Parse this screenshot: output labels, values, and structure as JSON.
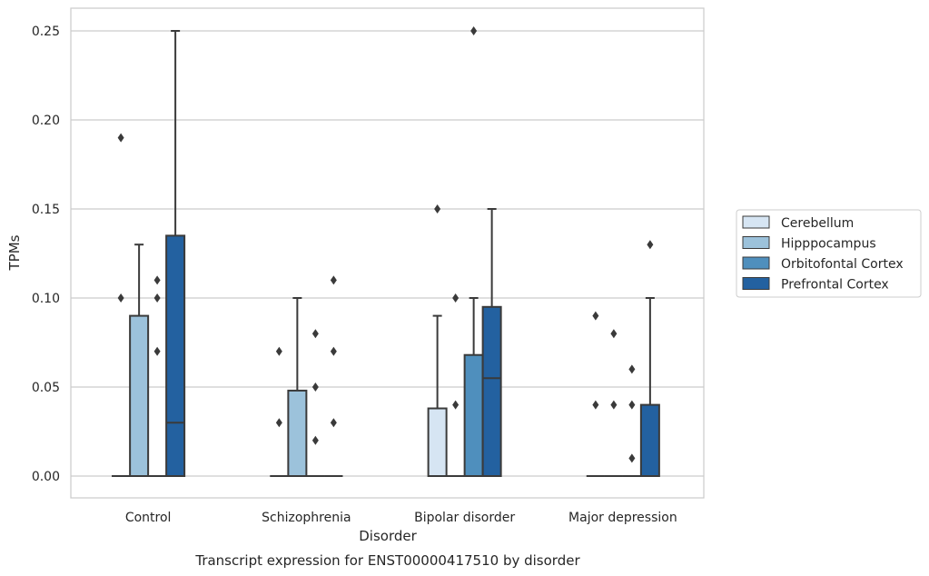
{
  "colors": {
    "Cerebellum": "#d6e5f3",
    "Hipppocampus": "#9cc2db",
    "Orbitofontal Cortex": "#4f8fbd",
    "Prefrontal Cortex": "#2361a0",
    "edge": "#3a3a3a",
    "grid": "#cccccc",
    "frame": "#cccccc"
  },
  "chart_data": {
    "type": "box",
    "caption": "Transcript expression for ENST00000417510 by disorder",
    "xlabel": "Disorder",
    "ylabel": "TPMs",
    "ylim": [
      -0.012,
      0.263
    ],
    "yticks": [
      0.0,
      0.05,
      0.1,
      0.15,
      0.2,
      0.25
    ],
    "ytick_labels": [
      "0.00",
      "0.05",
      "0.10",
      "0.15",
      "0.20",
      "0.25"
    ],
    "grid": true,
    "legend_position": "right",
    "categories": [
      "Control",
      "Schizophrenia",
      "Bipolar disorder",
      "Major depression"
    ],
    "series": [
      {
        "name": "Cerebellum",
        "boxes": [
          {
            "q1": 0,
            "median": 0,
            "q3": 0,
            "whislo": 0,
            "whishi": 0,
            "fliers": [
              0.1,
              0.19
            ]
          },
          {
            "q1": 0,
            "median": 0,
            "q3": 0,
            "whislo": 0,
            "whishi": 0,
            "fliers": [
              0.03,
              0.07
            ]
          },
          {
            "q1": 0,
            "median": 0,
            "q3": 0.038,
            "whislo": 0,
            "whishi": 0.09,
            "fliers": [
              0.15
            ]
          },
          {
            "q1": 0,
            "median": 0,
            "q3": 0,
            "whislo": 0,
            "whishi": 0,
            "fliers": [
              0.04,
              0.09
            ]
          }
        ]
      },
      {
        "name": "Hipppocampus",
        "boxes": [
          {
            "q1": 0,
            "median": 0,
            "q3": 0.09,
            "whislo": 0,
            "whishi": 0.13,
            "fliers": []
          },
          {
            "q1": 0,
            "median": 0,
            "q3": 0.048,
            "whislo": 0,
            "whishi": 0.1,
            "fliers": []
          },
          {
            "q1": 0,
            "median": 0,
            "q3": 0,
            "whislo": 0,
            "whishi": 0,
            "fliers": [
              0.04,
              0.1
            ]
          },
          {
            "q1": 0,
            "median": 0,
            "q3": 0,
            "whislo": 0,
            "whishi": 0,
            "fliers": [
              0.04,
              0.08
            ]
          }
        ]
      },
      {
        "name": "Orbitofontal Cortex",
        "boxes": [
          {
            "q1": 0,
            "median": 0,
            "q3": 0,
            "whislo": 0,
            "whishi": 0,
            "fliers": [
              0.07,
              0.1,
              0.11
            ]
          },
          {
            "q1": 0,
            "median": 0,
            "q3": 0,
            "whislo": 0,
            "whishi": 0,
            "fliers": [
              0.02,
              0.05,
              0.08
            ]
          },
          {
            "q1": 0,
            "median": 0,
            "q3": 0.068,
            "whislo": 0,
            "whishi": 0.1,
            "fliers": [
              0.25
            ]
          },
          {
            "q1": 0,
            "median": 0,
            "q3": 0,
            "whislo": 0,
            "whishi": 0,
            "fliers": [
              0.01,
              0.04,
              0.06
            ]
          }
        ]
      },
      {
        "name": "Prefrontal Cortex",
        "boxes": [
          {
            "q1": 0,
            "median": 0.03,
            "q3": 0.135,
            "whislo": 0,
            "whishi": 0.25,
            "fliers": []
          },
          {
            "q1": 0,
            "median": 0,
            "q3": 0,
            "whislo": 0,
            "whishi": 0,
            "fliers": [
              0.03,
              0.07,
              0.11
            ]
          },
          {
            "q1": 0,
            "median": 0.055,
            "q3": 0.095,
            "whislo": 0,
            "whishi": 0.15,
            "fliers": []
          },
          {
            "q1": 0,
            "median": 0,
            "q3": 0.04,
            "whislo": 0,
            "whishi": 0.1,
            "fliers": [
              0.13
            ]
          }
        ]
      }
    ]
  }
}
